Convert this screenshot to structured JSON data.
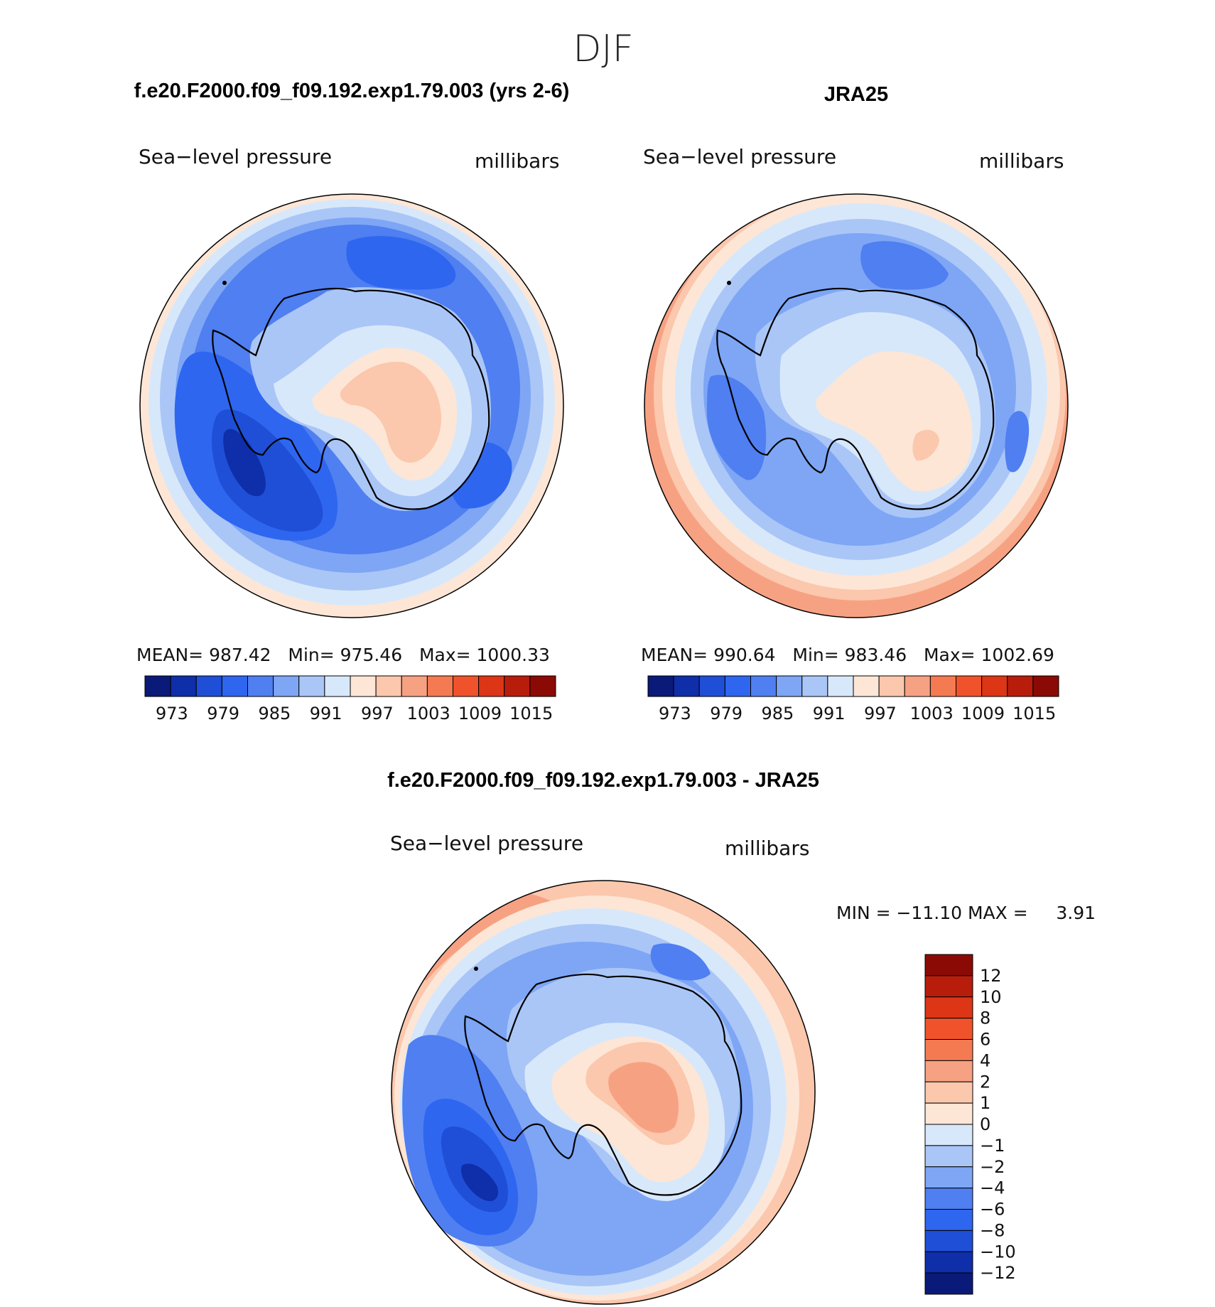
{
  "page": {
    "season": "DJF"
  },
  "colors": {
    "abs_scale": [
      "#0a1a78",
      "#0f2eaa",
      "#1f4fd6",
      "#2e66f0",
      "#4f7ff0",
      "#7ea6f5",
      "#aac6f7",
      "#d8e8fb",
      "#fde6d6",
      "#fbc7ad",
      "#f7a183",
      "#f47a52",
      "#f0532c",
      "#dc3616",
      "#b81d0c",
      "#8b0a05"
    ],
    "diff_scale": [
      "#0a1a78",
      "#0f2eaa",
      "#1f4fd6",
      "#2e66f0",
      "#4f7ff0",
      "#7ea6f5",
      "#aac6f7",
      "#d8e8fb",
      "#fde6d6",
      "#fbc7ad",
      "#f7a183",
      "#f47a52",
      "#f0532c",
      "#dc3616",
      "#b81d0c",
      "#8b0a05"
    ],
    "coastline": "#000000",
    "text": "#000000"
  },
  "panels": {
    "model": {
      "title": "f.e20.F2000.f09_f09.192.exp1.79.003 (yrs 2-6)",
      "variable": "Sea−level pressure",
      "units": "millibars",
      "stats_text": "MEAN= 987.42   Min= 975.46   Max= 1000.33",
      "colorbar_labels": [
        "973",
        "979",
        "985",
        "991",
        "997",
        "1003",
        "1009",
        "1015"
      ],
      "field": {
        "open_ocean_level": 3,
        "low_center_level": 0,
        "south_pacific_level": 2,
        "pole_level": 9,
        "east_ocean_level": 4,
        "rim_level": 6
      }
    },
    "obs": {
      "title": "JRA25",
      "variable": "Sea−level pressure",
      "units": "millibars",
      "stats_text": "MEAN= 990.64   Min= 983.46   Max= 1002.69",
      "colorbar_labels": [
        "973",
        "979",
        "985",
        "991",
        "997",
        "1003",
        "1009",
        "1015"
      ],
      "field": {
        "open_ocean_level": 5,
        "low_center_level": 4,
        "south_pacific_level": 4,
        "pole_level": 8,
        "east_ocean_level": 5,
        "rim_level": 8
      }
    },
    "diff": {
      "title": "f.e20.F2000.f09_f09.192.exp1.79.003 - JRA25",
      "variable": "Sea−level pressure",
      "units": "millibars",
      "minmax_text": "MIN = −11.10 MAX =     3.91",
      "colorbar_labels": [
        "12",
        "10",
        "8",
        "6",
        "4",
        "2",
        "1",
        "0",
        "−1",
        "−2",
        "−4",
        "−6",
        "−8",
        "−10",
        "−12"
      ],
      "field": {
        "open_ocean_level": 5,
        "low_center_level": 1,
        "south_pacific_level": 2,
        "pole_level": 10,
        "east_ocean_level": 6,
        "rim_level": 9
      }
    }
  }
}
